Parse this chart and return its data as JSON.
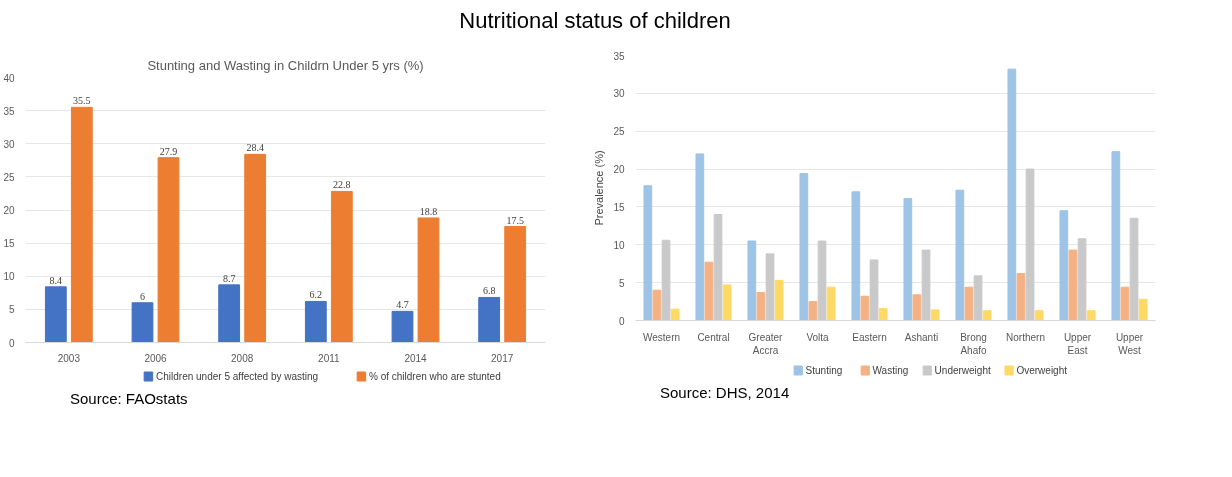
{
  "chart_data": [
    {
      "type": "bar",
      "title": "Nutritional status of children",
      "subtitle": "Stunting and Wasting in Childrn Under 5 yrs (%)",
      "categories": [
        "2003",
        "2006",
        "2008",
        "2011",
        "2014",
        "2017"
      ],
      "series": [
        {
          "name": "Children under 5 affected by wasting",
          "color": "#4472c4",
          "values": [
            8.4,
            6,
            8.7,
            6.2,
            4.7,
            6.8
          ]
        },
        {
          "name": "% of children who are stunted",
          "color": "#ed7d31",
          "values": [
            35.5,
            27.9,
            28.4,
            22.8,
            18.8,
            17.5
          ]
        }
      ],
      "ylim": [
        0,
        40
      ],
      "yticks": [
        0,
        5,
        10,
        15,
        20,
        25,
        30,
        35,
        40
      ],
      "grid": "y",
      "legend": "bottom",
      "data_labels": true,
      "annotations": [
        "Source: FAOstats"
      ]
    },
    {
      "type": "bar",
      "ylabel": "Prevalence (%)",
      "categories": [
        "Western",
        "Central",
        "Greater Accra",
        "Volta",
        "Eastern",
        "Ashanti",
        "Brong Ahafo",
        "Northern",
        "Upper East",
        "Upper West"
      ],
      "series": [
        {
          "name": "Stunting",
          "color": "#9dc3e6",
          "values": [
            17.8,
            22,
            10.5,
            19.4,
            17,
            16.1,
            17.2,
            33.2,
            14.5,
            22.3
          ]
        },
        {
          "name": "Wasting",
          "color": "#f4b183",
          "values": [
            4,
            7.7,
            3.7,
            2.5,
            3.2,
            3.4,
            4.4,
            6.2,
            9.3,
            4.4
          ]
        },
        {
          "name": "Underweight",
          "color": "#c9c9c9",
          "values": [
            10.6,
            14,
            8.8,
            10.5,
            8,
            9.3,
            5.9,
            20,
            10.8,
            13.5
          ]
        },
        {
          "name": "Overweight",
          "color": "#ffd966",
          "values": [
            1.5,
            4.7,
            5.3,
            4.4,
            1.6,
            1.4,
            1.3,
            1.3,
            1.3,
            2.8
          ]
        }
      ],
      "ylim": [
        0,
        35
      ],
      "yticks": [
        0,
        5,
        10,
        15,
        20,
        25,
        30,
        35
      ],
      "grid": "y",
      "legend": "bottom",
      "annotations": [
        "Source: DHS, 2014"
      ]
    }
  ]
}
